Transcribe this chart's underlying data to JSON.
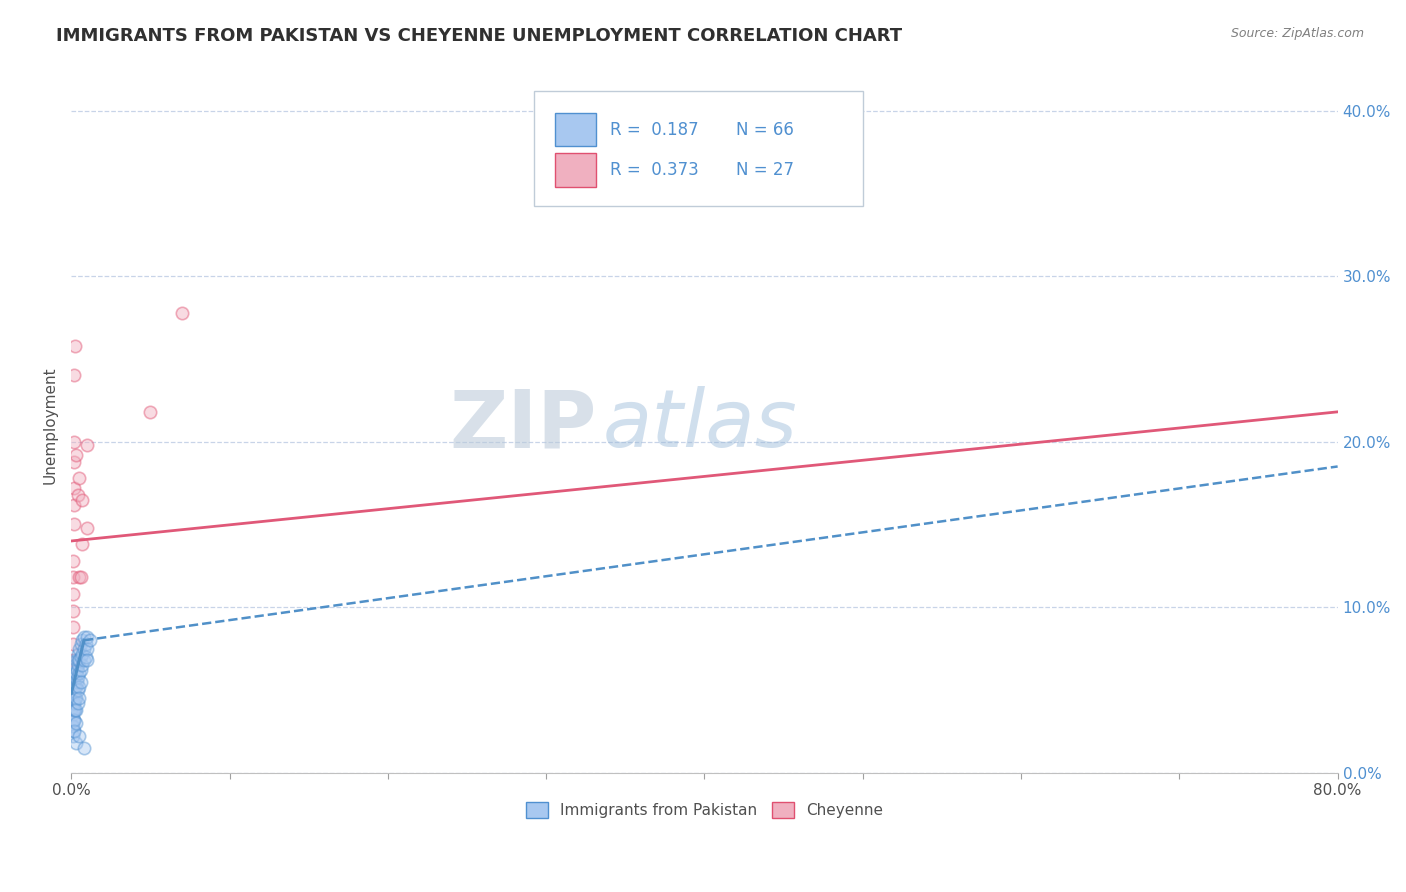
{
  "title": "IMMIGRANTS FROM PAKISTAN VS CHEYENNE UNEMPLOYMENT CORRELATION CHART",
  "source": "Source: ZipAtlas.com",
  "ylabel": "Unemployment",
  "watermark": "ZIPatlas",
  "xlim": [
    0.0,
    0.8
  ],
  "ylim": [
    0.0,
    0.42
  ],
  "xticks": [
    0.0,
    0.1,
    0.2,
    0.3,
    0.4,
    0.5,
    0.6,
    0.7,
    0.8
  ],
  "yticks": [
    0.0,
    0.1,
    0.2,
    0.3,
    0.4
  ],
  "xtick_labels_show": [
    "0.0%",
    "",
    "",
    "",
    "",
    "",
    "",
    "",
    "80.0%"
  ],
  "ytick_labels_right": [
    "0.0%",
    "10.0%",
    "20.0%",
    "30.0%",
    "40.0%"
  ],
  "legend1_label": "Immigrants from Pakistan",
  "legend2_label": "Cheyenne",
  "series1": {
    "name": "Immigrants from Pakistan",
    "scatter_color": "#a8c8f0",
    "scatter_edge": "#5090d0",
    "line_color": "#5090c8",
    "line_style_solid": "-",
    "line_style_dashed": "--",
    "R": 0.187,
    "N": 66,
    "points": [
      [
        0.0,
        0.038
      ],
      [
        0.0005,
        0.042
      ],
      [
        0.0005,
        0.035
      ],
      [
        0.0005,
        0.028
      ],
      [
        0.001,
        0.048
      ],
      [
        0.001,
        0.042
      ],
      [
        0.001,
        0.038
      ],
      [
        0.001,
        0.032
      ],
      [
        0.001,
        0.028
      ],
      [
        0.001,
        0.022
      ],
      [
        0.0015,
        0.055
      ],
      [
        0.0015,
        0.048
      ],
      [
        0.0015,
        0.042
      ],
      [
        0.0015,
        0.038
      ],
      [
        0.0015,
        0.032
      ],
      [
        0.0015,
        0.025
      ],
      [
        0.002,
        0.06
      ],
      [
        0.002,
        0.055
      ],
      [
        0.002,
        0.048
      ],
      [
        0.002,
        0.042
      ],
      [
        0.002,
        0.038
      ],
      [
        0.002,
        0.032
      ],
      [
        0.002,
        0.025
      ],
      [
        0.0025,
        0.065
      ],
      [
        0.0025,
        0.058
      ],
      [
        0.0025,
        0.052
      ],
      [
        0.0025,
        0.045
      ],
      [
        0.0025,
        0.038
      ],
      [
        0.003,
        0.068
      ],
      [
        0.003,
        0.06
      ],
      [
        0.003,
        0.052
      ],
      [
        0.003,
        0.045
      ],
      [
        0.003,
        0.038
      ],
      [
        0.003,
        0.03
      ],
      [
        0.0035,
        0.062
      ],
      [
        0.0035,
        0.055
      ],
      [
        0.004,
        0.072
      ],
      [
        0.004,
        0.065
      ],
      [
        0.004,
        0.058
      ],
      [
        0.004,
        0.05
      ],
      [
        0.004,
        0.042
      ],
      [
        0.0045,
        0.068
      ],
      [
        0.005,
        0.075
      ],
      [
        0.005,
        0.068
      ],
      [
        0.005,
        0.06
      ],
      [
        0.005,
        0.052
      ],
      [
        0.005,
        0.045
      ],
      [
        0.006,
        0.078
      ],
      [
        0.006,
        0.07
      ],
      [
        0.006,
        0.062
      ],
      [
        0.006,
        0.055
      ],
      [
        0.007,
        0.08
      ],
      [
        0.007,
        0.072
      ],
      [
        0.007,
        0.065
      ],
      [
        0.008,
        0.082
      ],
      [
        0.008,
        0.075
      ],
      [
        0.008,
        0.068
      ],
      [
        0.009,
        0.078
      ],
      [
        0.009,
        0.07
      ],
      [
        0.01,
        0.082
      ],
      [
        0.01,
        0.075
      ],
      [
        0.01,
        0.068
      ],
      [
        0.012,
        0.08
      ],
      [
        0.003,
        0.018
      ],
      [
        0.005,
        0.022
      ],
      [
        0.008,
        0.015
      ]
    ],
    "solid_trend_x": [
      0.0,
      0.008
    ],
    "solid_trend_y": [
      0.048,
      0.08
    ],
    "dashed_trend_x": [
      0.008,
      0.8
    ],
    "dashed_trend_y": [
      0.08,
      0.185
    ]
  },
  "series2": {
    "name": "Cheyenne",
    "scatter_color": "#f0b0c0",
    "scatter_edge": "#e05070",
    "line_color": "#e05878",
    "line_style": "-",
    "R": 0.373,
    "N": 27,
    "points": [
      [
        0.0,
        0.048
      ],
      [
        0.0,
        0.038
      ],
      [
        0.001,
        0.068
      ],
      [
        0.001,
        0.078
      ],
      [
        0.001,
        0.088
      ],
      [
        0.001,
        0.098
      ],
      [
        0.001,
        0.108
      ],
      [
        0.001,
        0.118
      ],
      [
        0.001,
        0.128
      ],
      [
        0.0015,
        0.15
      ],
      [
        0.002,
        0.162
      ],
      [
        0.002,
        0.172
      ],
      [
        0.002,
        0.188
      ],
      [
        0.002,
        0.2
      ],
      [
        0.002,
        0.24
      ],
      [
        0.0025,
        0.258
      ],
      [
        0.003,
        0.192
      ],
      [
        0.004,
        0.168
      ],
      [
        0.005,
        0.178
      ],
      [
        0.005,
        0.118
      ],
      [
        0.006,
        0.118
      ],
      [
        0.007,
        0.165
      ],
      [
        0.007,
        0.138
      ],
      [
        0.01,
        0.198
      ],
      [
        0.01,
        0.148
      ],
      [
        0.05,
        0.218
      ],
      [
        0.07,
        0.278
      ]
    ],
    "trend_x": [
      0.0,
      0.8
    ],
    "trend_y": [
      0.14,
      0.218
    ]
  },
  "background_color": "#ffffff",
  "plot_bg_color": "#ffffff",
  "grid_color": "#c8d4e8",
  "title_color": "#303030",
  "title_fontsize": 13,
  "axis_label_color": "#505050",
  "tick_color_right": "#5090d0",
  "tick_color_bottom": "#505050",
  "legend_color": "#5090d0",
  "marker_size": 80,
  "marker_alpha": 0.45,
  "marker_lw": 1.2
}
